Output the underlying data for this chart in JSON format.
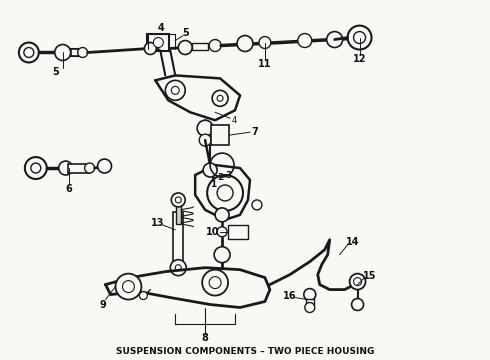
{
  "title": "SUSPENSION COMPONENTS – TWO PIECE HOUSING",
  "title_fontsize": 6.5,
  "title_fontweight": "bold",
  "bg_color": "#f5f5f0",
  "line_color": "#1a1a1a",
  "label_color": "#111111",
  "figsize": [
    4.9,
    3.6
  ],
  "dpi": 100,
  "img_data": ""
}
